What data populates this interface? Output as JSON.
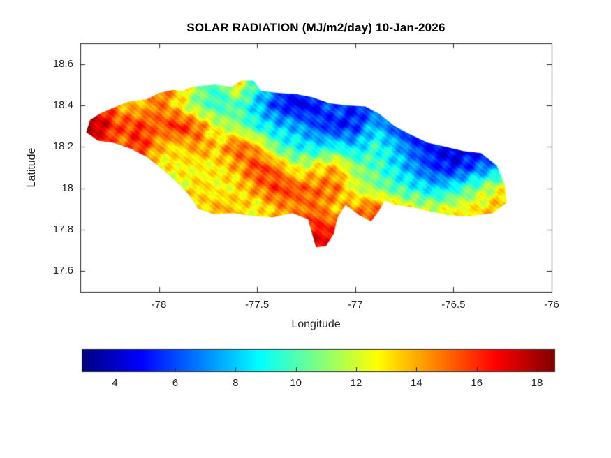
{
  "figure": {
    "background": "#ffffff",
    "axis_color": "#262626",
    "title_color": "#000000"
  },
  "chart_data": {
    "type": "heatmap",
    "title": "SOLAR RADIATION (MJ/m2/day) 10-Jan-2026",
    "xlabel": "Longitude",
    "ylabel": "Latitude",
    "xlim": [
      -78.4,
      -76.0
    ],
    "ylim": [
      17.5,
      18.7
    ],
    "xticks": [
      -78,
      -77.5,
      -77,
      -76.5,
      -76
    ],
    "xtick_labels": [
      "-78",
      "-77.5",
      "-77",
      "-76.5",
      "-76"
    ],
    "yticks": [
      18.6,
      18.4,
      18.2,
      18.0,
      17.8,
      17.6
    ],
    "ytick_labels": [
      "18.6",
      "18.4",
      "18.2",
      "18",
      "17.8",
      "17.6"
    ],
    "grid_lines": false,
    "colormap": "jet",
    "colorbar": {
      "orientation": "horizontal",
      "position": "bottom",
      "vmin": 2.9,
      "vmax": 18.6,
      "ticks": [
        4,
        6,
        8,
        10,
        12,
        14,
        16,
        18
      ],
      "tick_labels": [
        "4",
        "6",
        "8",
        "10",
        "12",
        "14",
        "16",
        "18"
      ]
    },
    "region_shape": "island-landmass",
    "value_grid": {
      "units": "MJ/m2/day",
      "lon_start": -78.4,
      "lon_step": 0.1,
      "lat_start": 18.6,
      "lat_step": -0.1,
      "values": [
        [
          15,
          14,
          13,
          13,
          14.5,
          14,
          11,
          9,
          12,
          9,
          7,
          6,
          7,
          7,
          6,
          7,
          8,
          7,
          6,
          6,
          7,
          7,
          8,
          8
        ],
        [
          15,
          15,
          13.5,
          13,
          15,
          14,
          11,
          9.5,
          13,
          9,
          7,
          5.5,
          6.5,
          7,
          5.5,
          6.5,
          7.5,
          6.5,
          5.5,
          6,
          7,
          7,
          8,
          8
        ],
        [
          16,
          16.5,
          14,
          13.5,
          15,
          13,
          10.5,
          9.5,
          10,
          8,
          5.5,
          4.5,
          5,
          6.5,
          5,
          5.5,
          5.5,
          4.5,
          5,
          6,
          7,
          6.5,
          7,
          7
        ],
        [
          18.4,
          17.5,
          15.5,
          16,
          15,
          16.5,
          15,
          12,
          11,
          9,
          8,
          7.5,
          6,
          5,
          5.5,
          8,
          6,
          4.5,
          4,
          4.5,
          5,
          6.5,
          7,
          7
        ],
        [
          17,
          16,
          14.5,
          16.5,
          14,
          13,
          14.5,
          13.5,
          15.5,
          14,
          10,
          9,
          8.5,
          9,
          8,
          9.5,
          8,
          6,
          5,
          4,
          4.5,
          5.5,
          8,
          8
        ],
        [
          15,
          14,
          13,
          13.5,
          12.5,
          13,
          12.5,
          13,
          14,
          16,
          15,
          12,
          13,
          14,
          11,
          10,
          8.5,
          7,
          5.5,
          5,
          6,
          7,
          9,
          9
        ],
        [
          13,
          13.5,
          12.5,
          13,
          13.5,
          12,
          13.5,
          12.5,
          13,
          14.5,
          16,
          15.5,
          15,
          15,
          12,
          11,
          10,
          9,
          8,
          9,
          10.5,
          12,
          13,
          13
        ],
        [
          12.5,
          12,
          13,
          12.5,
          13.5,
          14.5,
          13,
          14,
          13.5,
          12.5,
          14,
          14.5,
          15,
          13.5,
          14.5,
          15.5,
          13.5,
          12.5,
          12,
          12.5,
          13,
          13.5,
          15,
          15
        ],
        [
          13,
          13,
          13,
          13,
          13.5,
          14,
          13.5,
          14,
          13.5,
          13,
          13.5,
          15.5,
          16.5,
          16,
          14,
          14.5,
          14,
          13,
          13,
          13,
          13,
          14,
          15,
          15
        ],
        [
          13,
          13,
          13,
          13,
          13.5,
          14,
          13.5,
          14,
          13.5,
          13,
          14,
          16,
          17.5,
          17,
          14.5,
          14,
          14,
          13,
          13,
          13,
          13,
          14,
          15,
          15
        ],
        [
          13,
          13,
          13,
          13,
          13.5,
          14,
          13.5,
          14,
          13.5,
          13,
          14,
          16,
          17.5,
          17,
          14.5,
          14,
          14,
          13,
          13,
          13,
          13,
          14,
          15,
          15
        ]
      ]
    },
    "island_outline_lonlat": [
      [
        -78.37,
        18.27
      ],
      [
        -78.35,
        18.33
      ],
      [
        -78.3,
        18.36
      ],
      [
        -78.23,
        18.39
      ],
      [
        -78.15,
        18.42
      ],
      [
        -78.06,
        18.43
      ],
      [
        -78.0,
        18.46
      ],
      [
        -77.93,
        18.475
      ],
      [
        -77.88,
        18.47
      ],
      [
        -77.83,
        18.49
      ],
      [
        -77.72,
        18.5
      ],
      [
        -77.63,
        18.49
      ],
      [
        -77.58,
        18.52
      ],
      [
        -77.52,
        18.52
      ],
      [
        -77.48,
        18.47
      ],
      [
        -77.39,
        18.46
      ],
      [
        -77.3,
        18.455
      ],
      [
        -77.22,
        18.44
      ],
      [
        -77.13,
        18.41
      ],
      [
        -77.04,
        18.4
      ],
      [
        -76.95,
        18.395
      ],
      [
        -76.88,
        18.36
      ],
      [
        -76.8,
        18.3
      ],
      [
        -76.72,
        18.26
      ],
      [
        -76.63,
        18.22
      ],
      [
        -76.54,
        18.2
      ],
      [
        -76.45,
        18.18
      ],
      [
        -76.36,
        18.17
      ],
      [
        -76.28,
        18.11
      ],
      [
        -76.24,
        18.02
      ],
      [
        -76.23,
        17.93
      ],
      [
        -76.3,
        17.88
      ],
      [
        -76.42,
        17.865
      ],
      [
        -76.53,
        17.87
      ],
      [
        -76.63,
        17.89
      ],
      [
        -76.72,
        17.91
      ],
      [
        -76.8,
        17.92
      ],
      [
        -76.85,
        17.94
      ],
      [
        -76.88,
        17.89
      ],
      [
        -76.92,
        17.84
      ],
      [
        -76.98,
        17.87
      ],
      [
        -77.05,
        17.92
      ],
      [
        -77.09,
        17.86
      ],
      [
        -77.11,
        17.78
      ],
      [
        -77.15,
        17.72
      ],
      [
        -77.2,
        17.715
      ],
      [
        -77.22,
        17.78
      ],
      [
        -77.24,
        17.85
      ],
      [
        -77.32,
        17.88
      ],
      [
        -77.42,
        17.86
      ],
      [
        -77.52,
        17.865
      ],
      [
        -77.62,
        17.88
      ],
      [
        -77.72,
        17.875
      ],
      [
        -77.8,
        17.9
      ],
      [
        -77.85,
        17.97
      ],
      [
        -77.91,
        18.03
      ],
      [
        -77.98,
        18.09
      ],
      [
        -78.06,
        18.15
      ],
      [
        -78.14,
        18.19
      ],
      [
        -78.23,
        18.22
      ],
      [
        -78.31,
        18.23
      ]
    ]
  }
}
